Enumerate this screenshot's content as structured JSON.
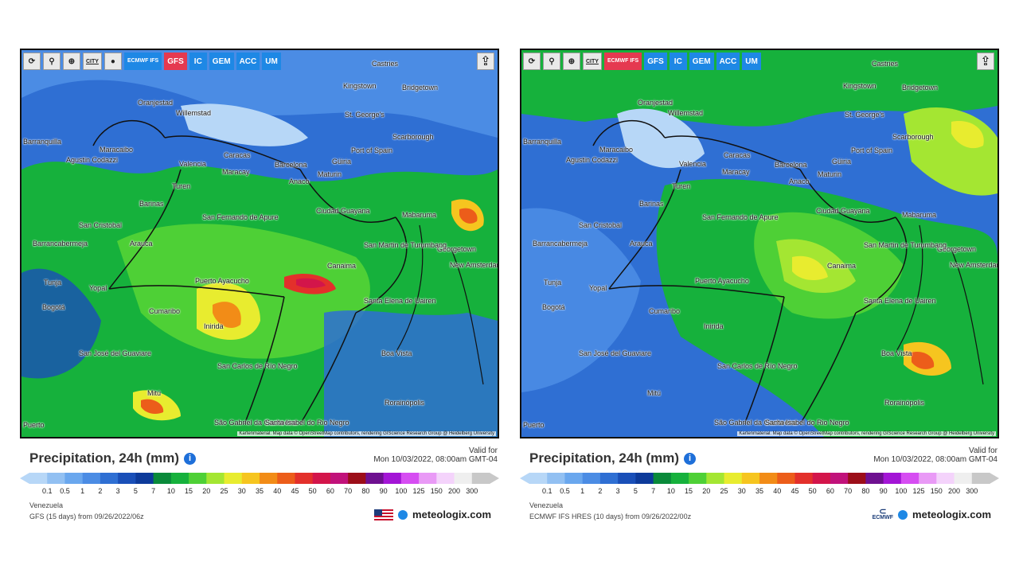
{
  "panels": [
    {
      "id": "gfs",
      "toolbar": {
        "refresh_icon": "refresh-icon",
        "pin_icon": "map-pin-icon",
        "zoom_icon": "zoom-icon",
        "city_label": "CITY",
        "dot_icon": "dot-icon",
        "models": [
          "ECMWF IFS",
          "GFS",
          "IC",
          "GEM",
          "ACC",
          "UM"
        ],
        "active_model": "GFS",
        "share_icon": "share-icon"
      },
      "cities": [
        "Castries",
        "Kingstown",
        "Bridgetown",
        "Oranjestad",
        "Willemstad",
        "St. George's",
        "Barranquilla",
        "Maracaibo",
        "Caracas",
        "Valencia",
        "Maracay",
        "Barcelona",
        "Güiria",
        "Port of Spain",
        "Scarborough",
        "Maturin",
        "Agustin Codazzi",
        "Anaco",
        "Turen",
        "Barinas",
        "Ciudad Guayana",
        "Mabaruma",
        "San Fernando de Apure",
        "San Cristobal",
        "Arauca",
        "Barrancabermeja",
        "Georgetown",
        "New Amsterdam",
        "San Martin de Turumbang",
        "Canaima",
        "Tunja",
        "Yopal",
        "Puerto Ayacucho",
        "Bogotá",
        "Cumaribo",
        "Santa Elena de Uairen",
        "Inirida",
        "San José del Guaviare",
        "Boa Vista",
        "San Carlos de Río Negro",
        "Mitú",
        "Rorainópolis",
        "São Gabriel da Cachoeira",
        "Santa Isabel do Rio Negro",
        "Puerto"
      ],
      "attribution": "Kartenmaterial: Map data © OpenStreetMap contributors, rendering GIScience Research Group @ Heidelberg University",
      "title": "Precipitation, 24h (mm)",
      "valid_label": "Valid for",
      "valid_time": "Mon 10/03/2022, 08:00am GMT-04",
      "region": "Venezuela",
      "model_run": "GFS (15 days) from 09/26/2022/06z",
      "brand": "meteologix.com",
      "flag_icon": "us-flag-icon"
    },
    {
      "id": "ecmwf",
      "toolbar": {
        "refresh_icon": "refresh-icon",
        "pin_icon": "map-pin-icon",
        "zoom_icon": "zoom-icon",
        "city_label": "CITY",
        "models": [
          "ECMWF IFS",
          "GFS",
          "IC",
          "GEM",
          "ACC",
          "UM"
        ],
        "active_model": "ECMWF IFS",
        "share_icon": "share-icon"
      },
      "cities": [
        "Castries",
        "Kingstown",
        "Bridgetown",
        "Oranjestad",
        "Willemstad",
        "St. George's",
        "Barranquilla",
        "Maracaibo",
        "Caracas",
        "Valencia",
        "Maracay",
        "Barcelona",
        "Güiria",
        "Port of Spain",
        "Scarborough",
        "Maturin",
        "Agustin Codazzi",
        "Anaco",
        "Turen",
        "Barinas",
        "Ciudad Guayana",
        "Mabaruma",
        "San Fernando de Apure",
        "San Cristobal",
        "Arauca",
        "Barrancabermeja",
        "Georgetown",
        "New Amsterdam",
        "San Martin de Turumbang",
        "Canaima",
        "Tunja",
        "Yopal",
        "Puerto Ayacucho",
        "Bogotá",
        "Cumaribo",
        "Santa Elena de Uairen",
        "Inirida",
        "San José del Guaviare",
        "Boa Vista",
        "San Carlos de Río Negro",
        "Mitú",
        "Rorainópolis",
        "São Gabriel da Cachoeira",
        "Santa Isabel do Rio Negro",
        "Puerto"
      ],
      "attribution": "Kartenmaterial: Map data © OpenStreetMap contributors, rendering GIScience Research Group @ Heidelberg University",
      "title": "Precipitation, 24h (mm)",
      "valid_label": "Valid for",
      "valid_time": "Mon 10/03/2022, 08:00am GMT-04",
      "region": "Venezuela",
      "model_run": "ECMWF IFS HRES (10 days) from 09/26/2022/00z",
      "brand": "meteologix.com",
      "logo_label": "ECMWF"
    }
  ],
  "legend": {
    "ticks": [
      "0.1",
      "0.5",
      "1",
      "2",
      "3",
      "5",
      "7",
      "10",
      "15",
      "20",
      "25",
      "30",
      "35",
      "40",
      "45",
      "50",
      "60",
      "70",
      "80",
      "90",
      "100",
      "125",
      "150",
      "200",
      "300"
    ],
    "colors": [
      "#b7d7f7",
      "#92c0f2",
      "#6aa7ee",
      "#4b8ce4",
      "#2f6fd3",
      "#1a4fb8",
      "#0d3a9a",
      "#0a8a3a",
      "#16b13c",
      "#4ed036",
      "#a4e632",
      "#e8ec2f",
      "#f6c51f",
      "#f28c17",
      "#ec5d1a",
      "#e3302b",
      "#d3154a",
      "#c1127a",
      "#9c0e19",
      "#6e1090",
      "#a315d6",
      "#d64df2",
      "#e99af6",
      "#f4d3fb",
      "#efefef",
      "#c8c8c8"
    ]
  }
}
